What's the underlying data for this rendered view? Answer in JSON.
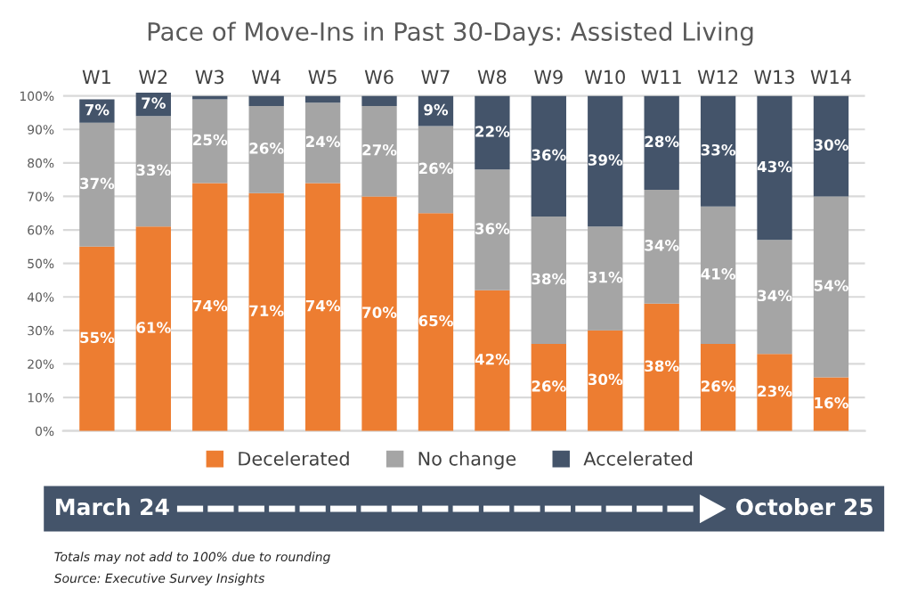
{
  "chart_data": {
    "type": "bar",
    "title": "Pace of Move-Ins in Past 30-Days: Assisted Living",
    "stacked": true,
    "categories": [
      "W1",
      "W2",
      "W3",
      "W4",
      "W5",
      "W6",
      "W7",
      "W8",
      "W9",
      "W10",
      "W11",
      "W12",
      "W13",
      "W14"
    ],
    "series": [
      {
        "name": "Decelerated",
        "color": "#ed7d31",
        "values": [
          55,
          61,
          74,
          71,
          74,
          70,
          65,
          42,
          26,
          30,
          38,
          26,
          23,
          16
        ],
        "value_labels": [
          "55%",
          "61%",
          "74%",
          "71%",
          "74%",
          "70%",
          "65%",
          "42%",
          "26%",
          "30%",
          "38%",
          "26%",
          "23%",
          "16%"
        ]
      },
      {
        "name": "No change",
        "color": "#a5a5a5",
        "values": [
          37,
          33,
          25,
          26,
          24,
          27,
          26,
          36,
          38,
          31,
          34,
          41,
          34,
          54
        ],
        "value_labels": [
          "37%",
          "33%",
          "25%",
          "26%",
          "24%",
          "27%",
          "26%",
          "36%",
          "38%",
          "31%",
          "34%",
          "41%",
          "34%",
          "54%"
        ]
      },
      {
        "name": "Accelerated",
        "color": "#44546a",
        "values": [
          7,
          7,
          1,
          3,
          2,
          3,
          9,
          22,
          36,
          39,
          28,
          33,
          43,
          30
        ],
        "value_labels": [
          "7%",
          "7%",
          null,
          null,
          null,
          null,
          "9%",
          "22%",
          "36%",
          "39%",
          "28%",
          "33%",
          "43%",
          "30%"
        ]
      }
    ],
    "ylim": [
      0,
      101
    ],
    "yticks": [
      {
        "value": 0,
        "label": "0%"
      },
      {
        "value": 10,
        "label": "10%"
      },
      {
        "value": 20,
        "label": "20%"
      },
      {
        "value": 30,
        "label": "30%"
      },
      {
        "value": 40,
        "label": "40%"
      },
      {
        "value": 50,
        "label": "50%"
      },
      {
        "value": 60,
        "label": "60%"
      },
      {
        "value": 70,
        "label": "70%"
      },
      {
        "value": 80,
        "label": "80%"
      },
      {
        "value": 90,
        "label": "90%"
      },
      {
        "value": 100,
        "label": "100%"
      }
    ],
    "grid": "y",
    "legend": "bottom",
    "annotations": [
      "March 24",
      "October 25",
      "Totals may not add to 100% due to rounding",
      "Source: Executive Survey Insights"
    ]
  }
}
